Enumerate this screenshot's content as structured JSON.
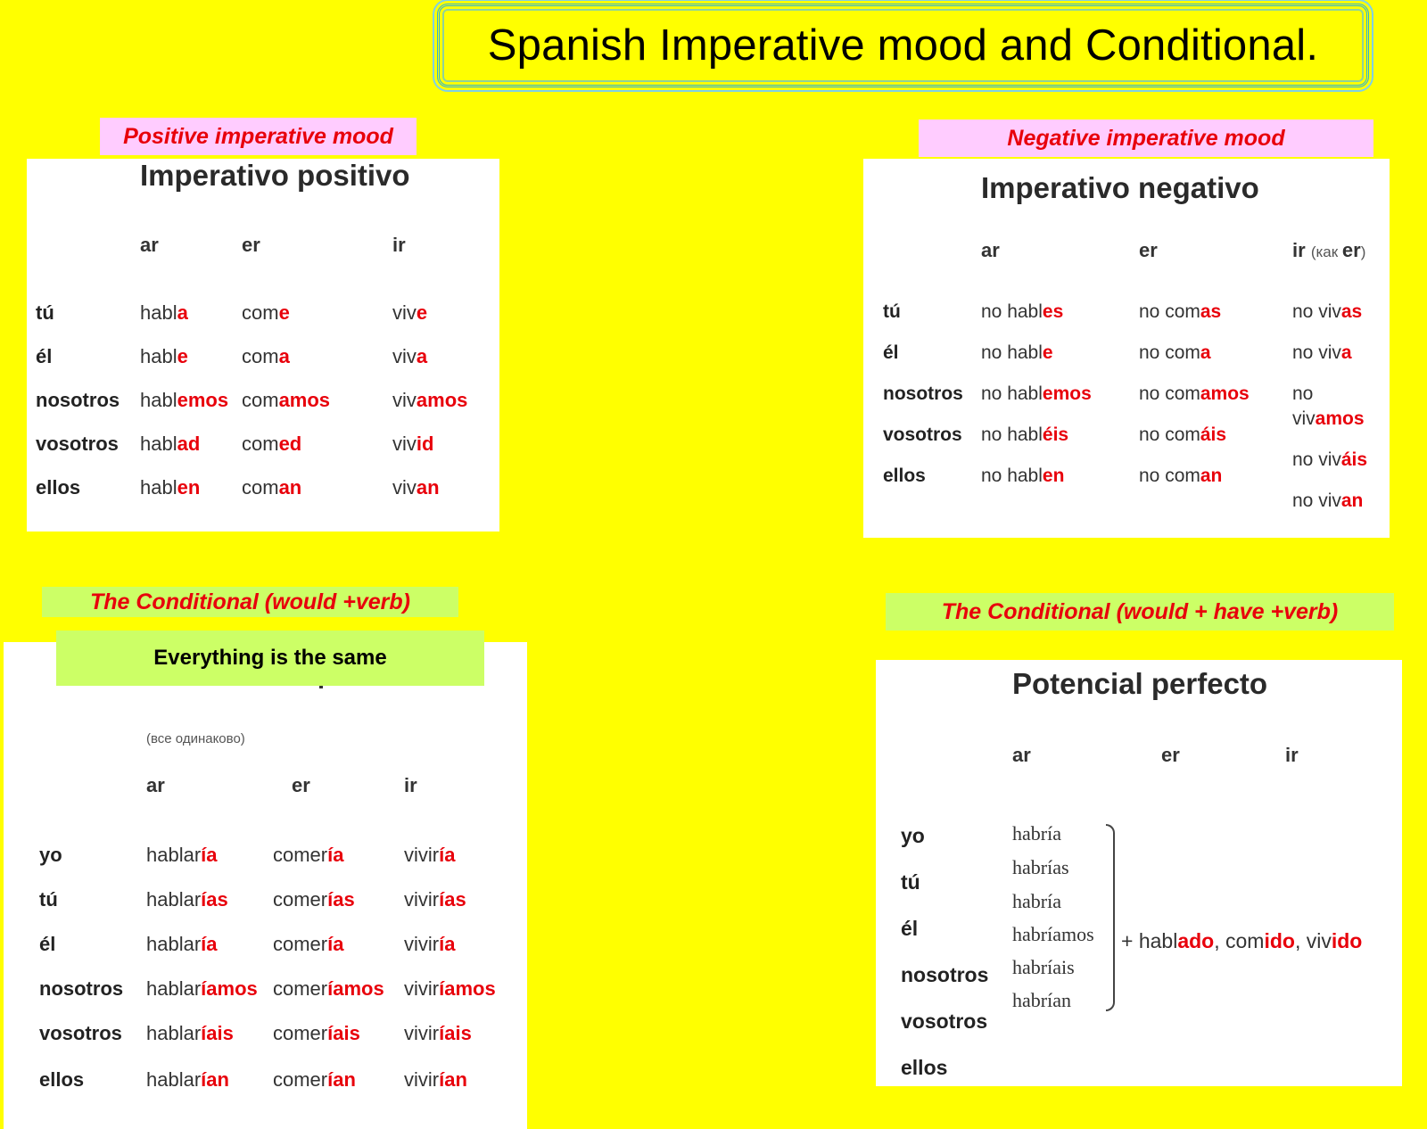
{
  "title": "Spanish Imperative mood and Conditional.",
  "colors": {
    "background": "#ffff00",
    "ending_red": "#e8000b",
    "label_pink": "#ffccff",
    "label_lime": "#ccff66",
    "frame_blue": "#2ab3d6"
  },
  "positive": {
    "label": "Positive imperative mood",
    "card_title": "Imperativo positivo",
    "headers": [
      "ar",
      "er",
      "ir"
    ],
    "rows": [
      {
        "pronoun": "tú",
        "ar": [
          "habl",
          "a"
        ],
        "er": [
          "com",
          "e"
        ],
        "ir": [
          "viv",
          "e"
        ]
      },
      {
        "pronoun": "él",
        "ar": [
          "habl",
          "e"
        ],
        "er": [
          "com",
          "a"
        ],
        "ir": [
          "viv",
          "a"
        ]
      },
      {
        "pronoun": "nosotros",
        "ar": [
          "habl",
          "emos"
        ],
        "er": [
          "com",
          "amos"
        ],
        "ir": [
          "viv",
          "amos"
        ]
      },
      {
        "pronoun": "vosotros",
        "ar": [
          "habl",
          "ad"
        ],
        "er": [
          "com",
          "ed"
        ],
        "ir": [
          "viv",
          "id"
        ]
      },
      {
        "pronoun": "ellos",
        "ar": [
          "habl",
          "en"
        ],
        "er": [
          "com",
          "an"
        ],
        "ir": [
          "viv",
          "an"
        ]
      }
    ]
  },
  "negative": {
    "label": "Negative imperative mood",
    "card_title": "Imperativo negativo",
    "headers": [
      "ar",
      "er",
      "ir"
    ],
    "header_note": "(как er)",
    "header_note_bold": "er",
    "header_note_open": "(как ",
    "header_note_close": ")",
    "rows": [
      {
        "pronoun": "tú",
        "ar": [
          "no habl",
          "es"
        ],
        "er": [
          "no com",
          "as"
        ]
      },
      {
        "pronoun": "él",
        "ar": [
          "no habl",
          "e"
        ],
        "er": [
          "no com",
          "a"
        ]
      },
      {
        "pronoun": "nosotros",
        "ar": [
          "no habl",
          "emos"
        ],
        "er": [
          "no com",
          "amos"
        ]
      },
      {
        "pronoun": "vosotros",
        "ar": [
          "no habl",
          "éis"
        ],
        "er": [
          "no com",
          "áis"
        ]
      },
      {
        "pronoun": "ellos",
        "ar": [
          "no habl",
          "en"
        ],
        "er": [
          "no com",
          "an"
        ]
      }
    ],
    "ir_column": [
      [
        "no viv",
        "as"
      ],
      [
        "no viv",
        "a"
      ],
      [
        "no",
        ""
      ],
      [
        "viv",
        "amos"
      ],
      [
        "no viv",
        "áis"
      ],
      [
        "no viv",
        "an"
      ]
    ]
  },
  "conditional": {
    "label": "The Conditional (would +verb)",
    "banner": "Everything is the same",
    "note_ru": "(все одинаково)",
    "headers": [
      "ar",
      "er",
      "ir"
    ],
    "rows": [
      {
        "pronoun": "yo",
        "ar": [
          "hablar",
          "ía"
        ],
        "er": [
          "comer",
          "ía"
        ],
        "ir": [
          "vivir",
          "ía"
        ]
      },
      {
        "pronoun": "tú",
        "ar": [
          "hablar",
          "ías"
        ],
        "er": [
          "comer",
          "ías"
        ],
        "ir": [
          "vivir",
          "ías"
        ]
      },
      {
        "pronoun": "él",
        "ar": [
          "hablar",
          "ía"
        ],
        "er": [
          "comer",
          "ía"
        ],
        "ir": [
          "vivir",
          "ía"
        ]
      },
      {
        "pronoun": "nosotros",
        "ar": [
          "hablar",
          "íamos"
        ],
        "er": [
          "comer",
          "íamos"
        ],
        "ir": [
          "vivir",
          "íamos"
        ]
      },
      {
        "pronoun": "vosotros",
        "ar": [
          "hablar",
          "íais"
        ],
        "er": [
          "comer",
          "íais"
        ],
        "ir": [
          "vivir",
          "íais"
        ]
      },
      {
        "pronoun": "ellos",
        "ar": [
          "hablar",
          "ían"
        ],
        "er": [
          "comer",
          "ían"
        ],
        "ir": [
          "vivir",
          "ían"
        ]
      }
    ]
  },
  "perfect": {
    "label": "The Conditional (would + have +verb)",
    "card_title": "Potencial perfecto",
    "headers": [
      "ar",
      "er",
      "ir"
    ],
    "pronouns": [
      "yo",
      "tú",
      "él",
      "nosotros",
      "vosotros",
      "ellos"
    ],
    "auxiliary": [
      "habría",
      "habrías",
      "habría",
      "habríamos",
      "habríais",
      "habrían"
    ],
    "participles": {
      "prefix": "+ ",
      "items": [
        [
          "habl",
          "ado"
        ],
        [
          "com",
          "ido"
        ],
        [
          "viv",
          "ido"
        ]
      ],
      "sep": ", "
    }
  }
}
